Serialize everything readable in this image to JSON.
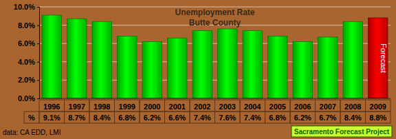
{
  "chart_data": {
    "type": "bar",
    "title": "Unemployment Rate",
    "subtitle": "Butte County",
    "categories": [
      "1996",
      "1997",
      "1998",
      "1999",
      "2000",
      "2001",
      "2002",
      "2003",
      "2004",
      "2005",
      "2006",
      "2007",
      "2008",
      "2009"
    ],
    "values": [
      9.1,
      8.7,
      8.4,
      6.8,
      6.2,
      6.6,
      7.4,
      7.6,
      7.4,
      6.8,
      6.2,
      6.7,
      8.4,
      8.8
    ],
    "value_labels": [
      "9.1%",
      "8.7%",
      "8.4%",
      "6.8%",
      "6.2%",
      "6.6%",
      "7.4%",
      "7.6%",
      "7.4%",
      "6.8%",
      "6.2%",
      "6.7%",
      "8.4%",
      "8.8%"
    ],
    "colors": [
      "#00d800",
      "#00d800",
      "#00d800",
      "#00d800",
      "#00d800",
      "#00d800",
      "#00d800",
      "#00d800",
      "#00d800",
      "#00d800",
      "#00d800",
      "#00d800",
      "#00d800",
      "#e00000"
    ],
    "ylim": [
      0,
      10
    ],
    "yticks": [
      {
        "value": 0,
        "label": "0.0%"
      },
      {
        "value": 2,
        "label": "2.0%"
      },
      {
        "value": 4,
        "label": "4.0%"
      },
      {
        "value": 6,
        "label": "6.0%"
      },
      {
        "value": 8,
        "label": "8.0%"
      },
      {
        "value": 10,
        "label": "10.0%"
      }
    ],
    "grid": true,
    "data_labels": true,
    "annotations": [
      "Forecast",
      "%",
      "data: CA EDD, LMI",
      "Sacramento Forecast Project"
    ]
  }
}
